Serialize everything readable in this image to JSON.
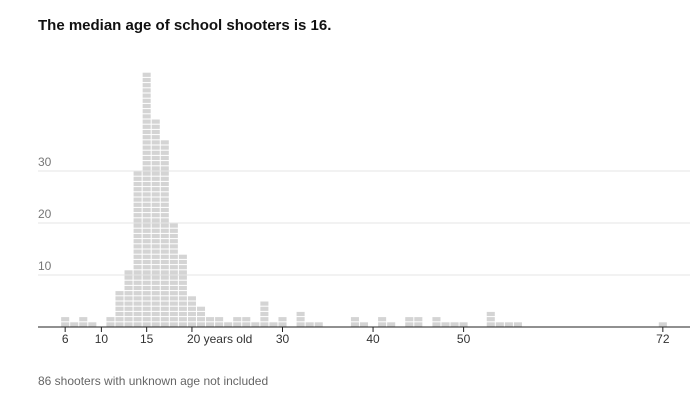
{
  "chart_data": {
    "type": "dot-histogram",
    "title": "The median age of school shooters is 16.",
    "note": "86 shooters with unknown age not included",
    "x": [
      6,
      7,
      8,
      9,
      11,
      12,
      13,
      14,
      15,
      16,
      17,
      18,
      19,
      20,
      21,
      22,
      23,
      24,
      25,
      26,
      27,
      28,
      29,
      30,
      32,
      33,
      34,
      38,
      39,
      41,
      42,
      44,
      45,
      47,
      48,
      49,
      50,
      53,
      54,
      55,
      56,
      72
    ],
    "values": [
      2,
      1,
      2,
      1,
      2,
      7,
      11,
      30,
      49,
      40,
      36,
      20,
      14,
      6,
      4,
      2,
      2,
      1,
      2,
      2,
      1,
      5,
      1,
      2,
      3,
      1,
      1,
      2,
      1,
      2,
      1,
      2,
      2,
      2,
      1,
      1,
      1,
      3,
      1,
      1,
      1,
      1
    ],
    "color": "#d4d4d4",
    "xlim": [
      3,
      75
    ],
    "xticks": [
      6,
      10,
      15,
      {
        "value": 20,
        "label": "20 years old"
      },
      30,
      40,
      50,
      72
    ],
    "ylim": [
      0,
      52
    ],
    "yticks": [
      10,
      20,
      30
    ],
    "grid": true
  }
}
